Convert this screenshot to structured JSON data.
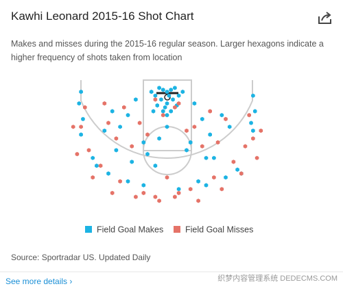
{
  "chart_data": {
    "type": "scatter",
    "title": "Kawhi Leonard 2015-16 Shot Chart",
    "subtitle": "Makes and misses during the 2015-16 regular season. Larger hexagons indicate a higher frequency of shots taken from location",
    "xlim": [
      -25,
      25
    ],
    "ylim": [
      0,
      32
    ],
    "series": [
      {
        "name": "Field Goal Makes",
        "color": "#1cb3e3",
        "x": [
          -2,
          -1,
          0,
          1,
          2,
          -3,
          3,
          -1.5,
          1.5,
          0,
          -2.5,
          2.5,
          -0.5,
          0.5,
          -4,
          4,
          -1,
          1,
          0,
          -3.5,
          -8,
          -10,
          -12,
          7,
          9,
          11,
          -6,
          6,
          -14,
          14,
          -16,
          16,
          -5,
          5,
          -9,
          10,
          -13,
          12,
          -22,
          -22.5,
          -21.5,
          22,
          22.5,
          21.5,
          -22,
          22,
          -18,
          18,
          -19,
          19,
          -6,
          3,
          -3,
          8,
          -10,
          10,
          -15,
          15,
          0,
          -2
        ],
        "values": [
          2,
          2.5,
          3,
          2.5,
          2,
          4,
          4,
          5,
          5,
          6,
          6.5,
          6.5,
          7,
          4,
          3,
          3,
          8,
          8,
          9,
          8,
          5,
          9,
          12,
          6,
          10,
          14,
          16,
          16,
          8,
          9,
          13,
          12,
          19,
          18,
          21,
          20,
          18,
          20,
          3,
          6,
          10,
          4,
          8,
          11,
          14,
          13,
          22,
          23,
          20,
          24,
          27,
          28,
          22,
          26,
          26,
          27,
          24,
          25,
          12,
          15
        ]
      },
      {
        "name": "Field Goal Misses",
        "color": "#e57368",
        "x": [
          -3,
          3,
          -1,
          2,
          -7,
          7,
          -11,
          11,
          -15,
          15,
          -9,
          9,
          -13,
          13,
          -21,
          21,
          -22,
          22,
          -20,
          20,
          -17,
          17,
          -12,
          12,
          -6,
          6,
          0,
          -3,
          3,
          -24,
          24,
          -23,
          23,
          -19,
          19,
          -14,
          14,
          -8,
          8,
          -2,
          2,
          -5,
          5,
          -16
        ],
        "values": [
          5,
          6,
          9,
          7,
          11,
          12,
          7,
          8,
          11,
          10,
          17,
          17,
          15,
          16,
          7,
          9,
          12,
          15,
          18,
          17,
          22,
          21,
          26,
          25,
          29,
          28,
          25,
          30,
          29,
          12,
          13,
          19,
          20,
          25,
          24,
          29,
          28,
          30,
          31,
          31,
          30,
          14,
          13,
          6
        ]
      }
    ],
    "source": "Source: Sportradar US. Updated Daily",
    "link": "See more details ›",
    "watermark": "织梦内容管理系统 DEDECMS.COM"
  }
}
